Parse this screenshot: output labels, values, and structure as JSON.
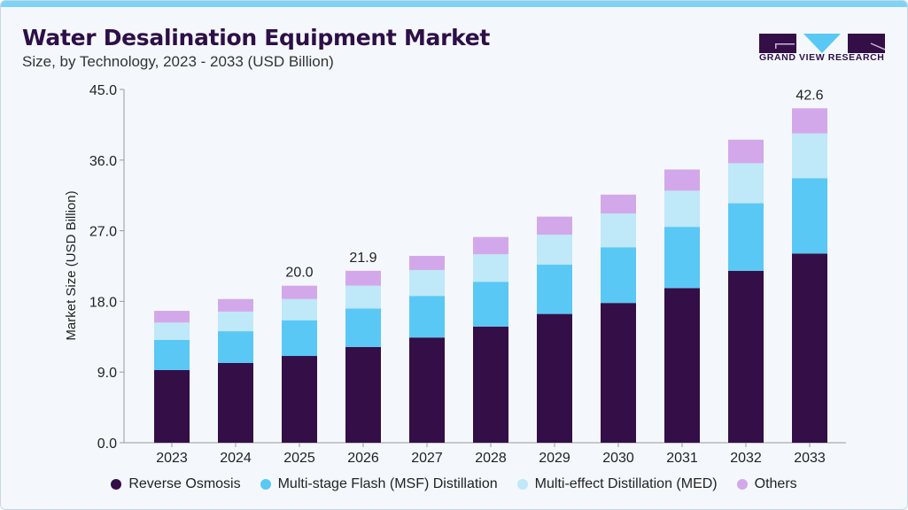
{
  "header": {
    "title": "Water Desalination Equipment Market",
    "subtitle": "Size, by Technology, 2023 - 2033 (USD Billion)"
  },
  "logo": {
    "text": "GRAND VIEW RESEARCH"
  },
  "chart_data": {
    "type": "bar",
    "stacked": true,
    "title": "Water Desalination Equipment Market",
    "subtitle": "Size, by Technology, 2023 - 2033 (USD Billion)",
    "xlabel": "",
    "ylabel": "Market Size (USD Billion)",
    "ylim": [
      0,
      45
    ],
    "yticks": [
      "0.0",
      "9.0",
      "18.0",
      "27.0",
      "36.0",
      "45.0"
    ],
    "grid": false,
    "legend_position": "bottom",
    "categories": [
      "2023",
      "2024",
      "2025",
      "2026",
      "2027",
      "2028",
      "2029",
      "2030",
      "2031",
      "2032",
      "2033"
    ],
    "series": [
      {
        "name": "Reverse Osmosis",
        "color": "#340e47",
        "values": [
          9.25,
          10.15,
          11.05,
          12.2,
          13.4,
          14.8,
          16.4,
          17.8,
          19.7,
          21.9,
          24.1
        ]
      },
      {
        "name": "Multi-stage Flash (MSF) Distillation",
        "color": "#5ac8f5",
        "values": [
          3.85,
          4.05,
          4.55,
          4.9,
          5.3,
          5.7,
          6.3,
          7.1,
          7.8,
          8.6,
          9.6
        ]
      },
      {
        "name": "Multi-effect Distillation (MED)",
        "color": "#bfe8f8",
        "values": [
          2.2,
          2.5,
          2.7,
          2.9,
          3.3,
          3.5,
          3.8,
          4.3,
          4.6,
          5.1,
          5.7
        ]
      },
      {
        "name": "Others",
        "color": "#d3a8ea",
        "values": [
          1.5,
          1.6,
          1.7,
          1.9,
          1.8,
          2.2,
          2.3,
          2.4,
          2.7,
          3.0,
          3.2
        ]
      }
    ],
    "data_labels": [
      {
        "category": "2025",
        "text": "20.0"
      },
      {
        "category": "2026",
        "text": "21.9"
      },
      {
        "category": "2033",
        "text": "42.6"
      }
    ]
  }
}
